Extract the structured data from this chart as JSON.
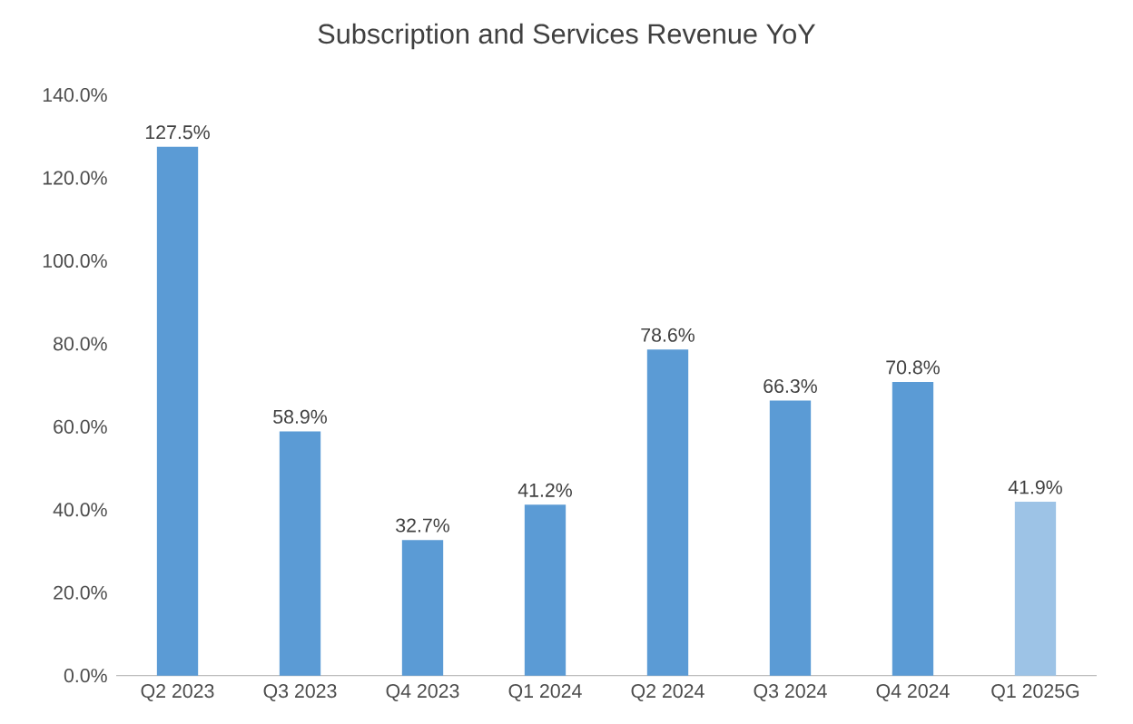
{
  "chart_data": {
    "type": "bar",
    "title": "Subscription and Services Revenue YoY",
    "categories": [
      "Q2 2023",
      "Q3 2023",
      "Q4 2023",
      "Q1 2024",
      "Q2 2024",
      "Q3 2024",
      "Q4 2024",
      "Q1 2025G"
    ],
    "values": [
      127.5,
      58.9,
      32.7,
      41.2,
      78.6,
      66.3,
      70.8,
      41.9
    ],
    "value_labels": [
      "127.5%",
      "58.9%",
      "32.7%",
      "41.2%",
      "78.6%",
      "66.3%",
      "70.8%",
      "41.9%"
    ],
    "colors": [
      "#5b9bd5",
      "#5b9bd5",
      "#5b9bd5",
      "#5b9bd5",
      "#5b9bd5",
      "#5b9bd5",
      "#5b9bd5",
      "#9dc3e6"
    ],
    "ylim": [
      0,
      140
    ],
    "yticks": [
      {
        "value": 0,
        "label": "0.0%"
      },
      {
        "value": 20,
        "label": "20.0%"
      },
      {
        "value": 40,
        "label": "40.0%"
      },
      {
        "value": 60,
        "label": "60.0%"
      },
      {
        "value": 80,
        "label": "80.0%"
      },
      {
        "value": 100,
        "label": "100.0%"
      },
      {
        "value": 120,
        "label": "120.0%"
      },
      {
        "value": 140,
        "label": "140.0%"
      }
    ],
    "grid": false
  }
}
